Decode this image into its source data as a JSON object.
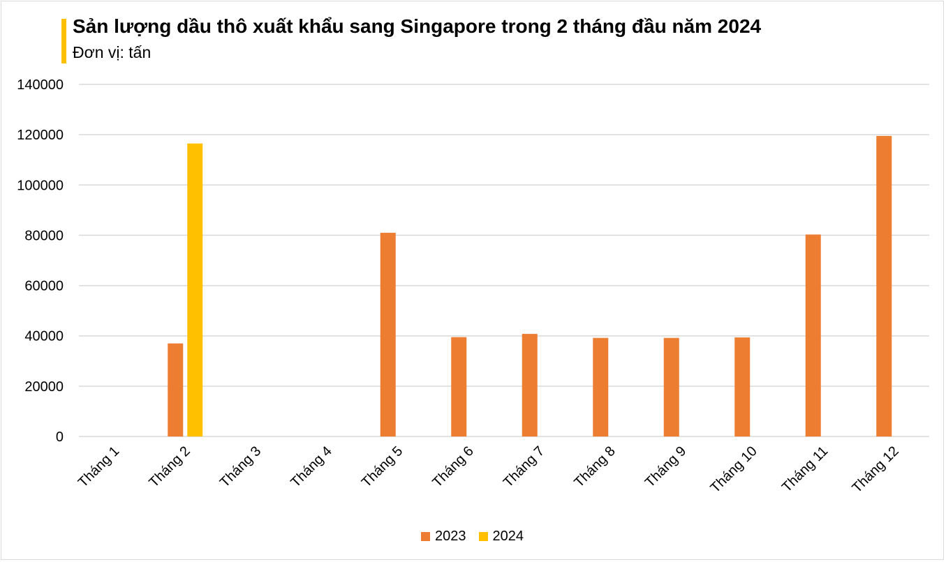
{
  "chart_data": {
    "type": "bar",
    "title": "Sản lượng dầu thô xuất khẩu sang Singapore trong 2 tháng đầu năm 2024",
    "subtitle": "Đơn vị: tấn",
    "categories": [
      "Tháng 1",
      "Tháng 2",
      "Tháng 3",
      "Tháng 4",
      "Tháng 5",
      "Tháng 6",
      "Tháng 7",
      "Tháng 8",
      "Tháng 9",
      "Tháng 10",
      "Tháng 11",
      "Tháng 12"
    ],
    "series": [
      {
        "name": "2023",
        "color": "#ed7d31",
        "values": [
          0,
          37000,
          0,
          0,
          81000,
          39500,
          40800,
          39200,
          39200,
          39400,
          80300,
          119500
        ]
      },
      {
        "name": "2024",
        "color": "#ffc000",
        "values": [
          0,
          116500,
          null,
          null,
          null,
          null,
          null,
          null,
          null,
          null,
          null,
          null
        ]
      }
    ],
    "ylim": [
      0,
      140000
    ],
    "yticks": [
      "0",
      "20000",
      "40000",
      "60000",
      "80000",
      "100000",
      "120000",
      "140000"
    ],
    "grid": true,
    "legend_position": "bottom"
  }
}
